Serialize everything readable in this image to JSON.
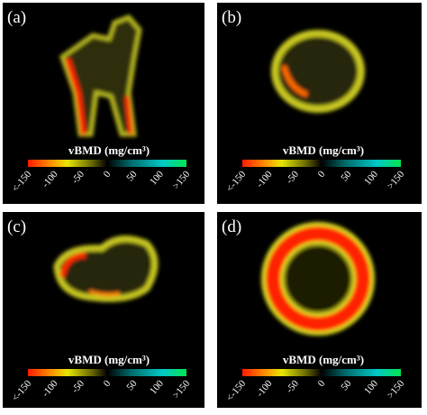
{
  "panels": [
    {
      "label": "(a)",
      "colorbar": {
        "title": "vBMD (mg/cm³)",
        "ticks": [
          "<-150",
          "-100",
          "-50",
          "0",
          "50",
          "100",
          ">150"
        ]
      }
    },
    {
      "label": "(b)",
      "colorbar": {
        "title": "vBMD (mg/cm³)",
        "ticks": [
          "<-150",
          "-100",
          "-50",
          "0",
          "50",
          "100",
          ">150"
        ]
      }
    },
    {
      "label": "(c)",
      "colorbar": {
        "title": "vBMD (mg/cm³)",
        "ticks": [
          "<-150",
          "-100",
          "-50",
          "0",
          "50",
          "100",
          ">150"
        ]
      }
    },
    {
      "label": "(d)",
      "colorbar": {
        "title": "vBMD (mg/cm³)",
        "ticks": [
          "<-150",
          "-100",
          "-50",
          "0",
          "50",
          "100",
          ">150"
        ]
      }
    }
  ]
}
